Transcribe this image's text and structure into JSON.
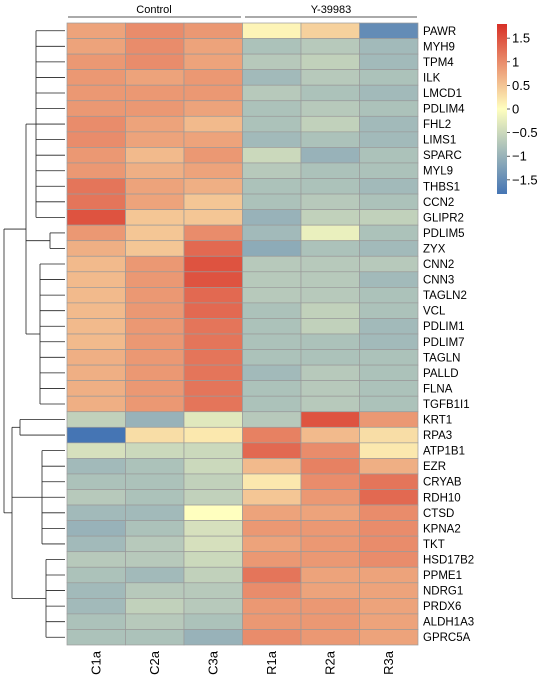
{
  "chart_data": {
    "type": "heatmap",
    "title": "",
    "xlabel": "",
    "ylabel": "",
    "groups": [
      {
        "label": "Control",
        "columns": [
          "C1a",
          "C2a",
          "C3a"
        ]
      },
      {
        "label": "Y-39983",
        "columns": [
          "R1a",
          "R2a",
          "R3a"
        ]
      }
    ],
    "columns": [
      "C1a",
      "C2a",
      "C3a",
      "R1a",
      "R2a",
      "R3a"
    ],
    "rows": [
      "PAWR",
      "MYH9",
      "TPM4",
      "ILK",
      "LMCD1",
      "PDLIM4",
      "FHL2",
      "LIMS1",
      "SPARC",
      "MYL9",
      "THBS1",
      "CCN2",
      "GLIPR2",
      "PDLIM5",
      "ZYX",
      "CNN2",
      "CNN3",
      "TAGLN2",
      "VCL",
      "PDLIM1",
      "PDLIM7",
      "TAGLN",
      "PALLD",
      "FLNA",
      "TGFB1I1",
      "KRT1",
      "RPA3",
      "ATP1B1",
      "EZR",
      "CRYAB",
      "RDH10",
      "CTSD",
      "KPNA2",
      "TKT",
      "HSD17B2",
      "PPME1",
      "NDRG1",
      "PRDX6",
      "ALDH1A3",
      "GPRC5A"
    ],
    "values": [
      [
        0.8,
        1.0,
        0.9,
        0.1,
        0.4,
        -1.5
      ],
      [
        0.8,
        1.0,
        0.8,
        -0.8,
        -0.7,
        -0.9
      ],
      [
        0.9,
        1.0,
        0.8,
        -0.7,
        -0.6,
        -0.9
      ],
      [
        0.9,
        0.8,
        0.9,
        -0.9,
        -0.7,
        -0.8
      ],
      [
        0.9,
        0.9,
        0.9,
        -0.7,
        -0.8,
        -0.9
      ],
      [
        0.9,
        0.9,
        0.8,
        -0.8,
        -0.7,
        -0.8
      ],
      [
        1.0,
        0.8,
        0.6,
        -0.8,
        -0.6,
        -0.9
      ],
      [
        1.0,
        0.8,
        0.8,
        -0.9,
        -0.8,
        -0.9
      ],
      [
        0.9,
        0.6,
        0.9,
        -0.5,
        -1.0,
        -0.8
      ],
      [
        0.9,
        0.7,
        0.8,
        -0.7,
        -0.8,
        -0.8
      ],
      [
        1.2,
        0.8,
        0.7,
        -0.8,
        -0.8,
        -0.9
      ],
      [
        1.2,
        0.8,
        0.5,
        -0.8,
        -0.7,
        -0.8
      ],
      [
        1.5,
        0.5,
        0.5,
        -1.0,
        -0.6,
        -0.6
      ],
      [
        0.9,
        0.5,
        1.0,
        -0.9,
        -0.2,
        -0.8
      ],
      [
        0.7,
        0.5,
        1.3,
        -1.1,
        -0.8,
        -0.9
      ],
      [
        0.6,
        0.9,
        1.5,
        -0.7,
        -0.7,
        -0.7
      ],
      [
        0.6,
        0.9,
        1.5,
        -0.7,
        -0.7,
        -0.9
      ],
      [
        0.6,
        0.9,
        1.3,
        -0.7,
        -0.7,
        -0.8
      ],
      [
        0.6,
        0.9,
        1.3,
        -0.8,
        -0.6,
        -0.8
      ],
      [
        0.6,
        0.9,
        1.2,
        -0.8,
        -0.6,
        -0.9
      ],
      [
        0.6,
        0.9,
        1.2,
        -0.8,
        -0.8,
        -0.9
      ],
      [
        0.7,
        0.9,
        1.2,
        -0.8,
        -0.8,
        -0.8
      ],
      [
        0.7,
        0.9,
        1.2,
        -0.9,
        -0.7,
        -0.8
      ],
      [
        0.7,
        0.9,
        1.2,
        -0.8,
        -0.7,
        -0.8
      ],
      [
        0.7,
        0.9,
        1.2,
        -0.8,
        -0.7,
        -0.8
      ],
      [
        -0.6,
        -1.0,
        -0.3,
        -0.7,
        1.5,
        0.9
      ],
      [
        -1.8,
        0.3,
        0.2,
        1.1,
        0.6,
        0.3
      ],
      [
        -0.4,
        -0.5,
        -0.5,
        1.3,
        1.0,
        0.2
      ],
      [
        -0.9,
        -0.8,
        -0.5,
        0.6,
        1.1,
        0.7
      ],
      [
        -0.8,
        -0.8,
        -0.6,
        0.2,
        1.0,
        1.2
      ],
      [
        -0.7,
        -0.8,
        -0.6,
        0.5,
        0.9,
        1.3
      ],
      [
        -0.9,
        -0.9,
        0.0,
        0.8,
        0.8,
        1.0
      ],
      [
        -1.0,
        -0.8,
        -0.4,
        0.9,
        0.9,
        1.0
      ],
      [
        -0.9,
        -0.7,
        -0.4,
        0.8,
        0.9,
        1.0
      ],
      [
        -0.7,
        -0.7,
        -0.5,
        0.9,
        0.9,
        1.0
      ],
      [
        -0.8,
        -0.9,
        -0.6,
        1.2,
        0.8,
        0.8
      ],
      [
        -0.9,
        -0.7,
        -0.7,
        1.0,
        0.8,
        0.8
      ],
      [
        -0.9,
        -0.6,
        -0.7,
        0.9,
        0.9,
        0.8
      ],
      [
        -0.8,
        -0.7,
        -0.8,
        0.9,
        0.9,
        0.8
      ],
      [
        -0.8,
        -0.8,
        -1.0,
        1.0,
        0.9,
        0.8
      ]
    ],
    "colorbar": {
      "ticks": [
        1.5,
        1,
        0.5,
        0,
        -0.5,
        -1,
        -1.5
      ],
      "tick_labels": [
        "1.5",
        "1",
        "0.5",
        "0",
        "−0.5",
        "−1",
        "−1.5"
      ],
      "range": [
        -1.8,
        1.8
      ],
      "colors": {
        "low": "#4575b4",
        "mid": "#ffffbf",
        "high": "#d73027"
      }
    },
    "row_dendrogram": true,
    "grid": true
  }
}
